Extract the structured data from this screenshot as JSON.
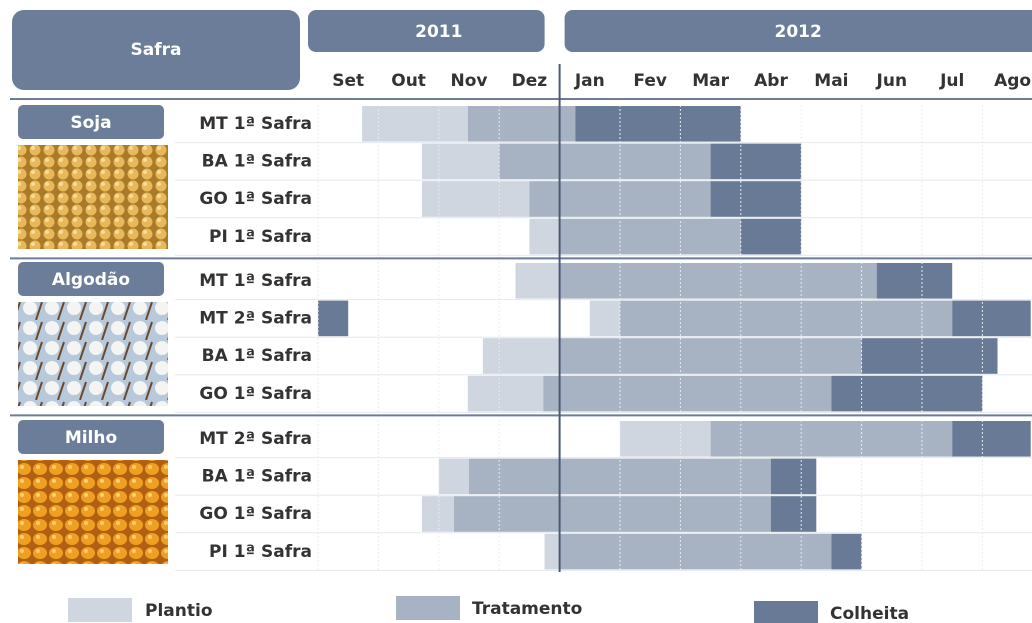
{
  "header": {
    "title": "Safra"
  },
  "years": [
    {
      "label": "2011",
      "start": 0,
      "end": 4
    },
    {
      "label": "2012",
      "start": 4,
      "end": 12
    }
  ],
  "months": [
    "Set",
    "Out",
    "Nov",
    "Dez",
    "Jan",
    "Fev",
    "Mar",
    "Abr",
    "Mai",
    "Jun",
    "Jul",
    "Ago"
  ],
  "legend": [
    {
      "label": "Plantio",
      "color": "#d0d6e0"
    },
    {
      "label": "Tratamento",
      "color": "#a7b3c2"
    },
    {
      "label": "Colheita",
      "color": "#687a95"
    }
  ],
  "crops": [
    {
      "name": "Soja",
      "rows": [
        {
          "label": "MT 1ª Safra",
          "segments": [
            {
              "phase": 0,
              "start": 0.73,
              "end": 2.48
            },
            {
              "phase": 1,
              "start": 2.48,
              "end": 4.26
            },
            {
              "phase": 2,
              "start": 4.26,
              "end": 7.0
            }
          ]
        },
        {
          "label": "BA 1ª Safra",
          "segments": [
            {
              "phase": 0,
              "start": 1.72,
              "end": 3.0
            },
            {
              "phase": 1,
              "start": 3.0,
              "end": 6.5
            },
            {
              "phase": 2,
              "start": 6.5,
              "end": 8.0
            }
          ]
        },
        {
          "label": "GO 1ª Safra",
          "segments": [
            {
              "phase": 0,
              "start": 1.72,
              "end": 3.5
            },
            {
              "phase": 1,
              "start": 3.5,
              "end": 6.5
            },
            {
              "phase": 2,
              "start": 6.5,
              "end": 8.0
            }
          ]
        },
        {
          "label": "PI 1ª Safra",
          "segments": [
            {
              "phase": 0,
              "start": 3.5,
              "end": 4.0
            },
            {
              "phase": 1,
              "start": 4.0,
              "end": 7.0
            },
            {
              "phase": 2,
              "start": 7.0,
              "end": 8.0
            }
          ]
        }
      ]
    },
    {
      "name": "Algodão",
      "rows": [
        {
          "label": "MT 1ª Safra",
          "segments": [
            {
              "phase": 0,
              "start": 3.27,
              "end": 4.0
            },
            {
              "phase": 1,
              "start": 4.0,
              "end": 9.25
            },
            {
              "phase": 2,
              "start": 9.25,
              "end": 10.5
            }
          ]
        },
        {
          "label": "MT 2ª Safra",
          "segments": [
            {
              "phase": 2,
              "start": 0,
              "end": 0.5
            },
            {
              "phase": 0,
              "start": 4.5,
              "end": 5.0
            },
            {
              "phase": 1,
              "start": 5.0,
              "end": 10.5
            },
            {
              "phase": 2,
              "start": 10.5,
              "end": 11.8
            }
          ]
        },
        {
          "label": "BA 1ª Safra",
          "segments": [
            {
              "phase": 0,
              "start": 2.73,
              "end": 4.0
            },
            {
              "phase": 1,
              "start": 4.0,
              "end": 9.0
            },
            {
              "phase": 2,
              "start": 9.0,
              "end": 11.25
            }
          ]
        },
        {
          "label": "GO 1ª Safra",
          "segments": [
            {
              "phase": 0,
              "start": 2.48,
              "end": 3.73
            },
            {
              "phase": 1,
              "start": 3.73,
              "end": 8.5
            },
            {
              "phase": 2,
              "start": 8.5,
              "end": 11.0
            }
          ]
        }
      ]
    },
    {
      "name": "Milho",
      "rows": [
        {
          "label": "MT 2ª Safra",
          "segments": [
            {
              "phase": 0,
              "start": 5.0,
              "end": 6.5
            },
            {
              "phase": 1,
              "start": 6.5,
              "end": 10.5
            },
            {
              "phase": 2,
              "start": 10.5,
              "end": 11.8
            }
          ]
        },
        {
          "label": "BA 1ª Safra",
          "segments": [
            {
              "phase": 0,
              "start": 2.0,
              "end": 2.5
            },
            {
              "phase": 1,
              "start": 2.5,
              "end": 7.5
            },
            {
              "phase": 2,
              "start": 7.5,
              "end": 8.25
            }
          ]
        },
        {
          "label": "GO 1ª Safra",
          "segments": [
            {
              "phase": 0,
              "start": 1.72,
              "end": 2.25
            },
            {
              "phase": 1,
              "start": 2.25,
              "end": 7.5
            },
            {
              "phase": 2,
              "start": 7.5,
              "end": 8.25
            }
          ]
        },
        {
          "label": "PI 1ª Safra",
          "segments": [
            {
              "phase": 0,
              "start": 3.75,
              "end": 4.0
            },
            {
              "phase": 1,
              "start": 4.0,
              "end": 8.5
            },
            {
              "phase": 2,
              "start": 8.5,
              "end": 9.0
            }
          ]
        }
      ]
    }
  ]
}
